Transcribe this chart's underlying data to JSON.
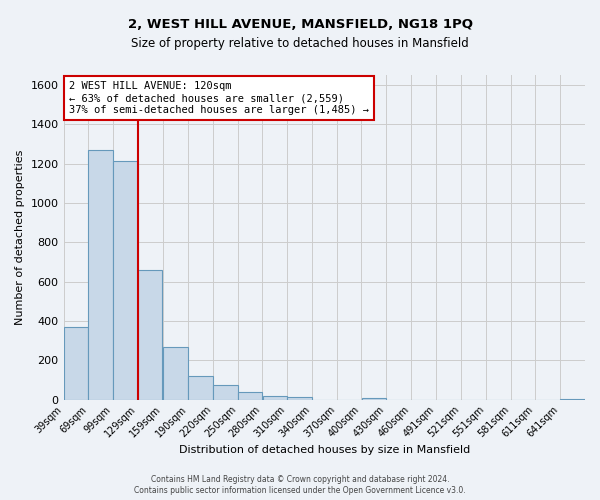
{
  "title_line1": "2, WEST HILL AVENUE, MANSFIELD, NG18 1PQ",
  "title_line2": "Size of property relative to detached houses in Mansfield",
  "xlabel": "Distribution of detached houses by size in Mansfield",
  "ylabel": "Number of detached properties",
  "bar_labels": [
    "39sqm",
    "69sqm",
    "99sqm",
    "129sqm",
    "159sqm",
    "190sqm",
    "220sqm",
    "250sqm",
    "280sqm",
    "310sqm",
    "340sqm",
    "370sqm",
    "400sqm",
    "430sqm",
    "460sqm",
    "491sqm",
    "521sqm",
    "551sqm",
    "581sqm",
    "611sqm",
    "641sqm"
  ],
  "bar_values": [
    370,
    1270,
    1215,
    660,
    270,
    120,
    75,
    40,
    20,
    15,
    0,
    0,
    10,
    0,
    0,
    0,
    0,
    0,
    0,
    0,
    5
  ],
  "bar_color": "#c8d8e8",
  "bar_edge_color": "#6699bb",
  "vline_bin_index": 3,
  "vline_color": "#cc0000",
  "annotation_text": "2 WEST HILL AVENUE: 120sqm\n← 63% of detached houses are smaller (2,559)\n37% of semi-detached houses are larger (1,485) →",
  "annotation_box_color": "#ffffff",
  "annotation_box_edge": "#cc0000",
  "ylim": [
    0,
    1650
  ],
  "yticks": [
    0,
    200,
    400,
    600,
    800,
    1000,
    1200,
    1400,
    1600
  ],
  "grid_color": "#cccccc",
  "bg_color": "#eef2f7",
  "footer_line1": "Contains HM Land Registry data © Crown copyright and database right 2024.",
  "footer_line2": "Contains public sector information licensed under the Open Government Licence v3.0.",
  "bin_edges": [
    39,
    69,
    99,
    129,
    159,
    190,
    220,
    250,
    280,
    310,
    340,
    370,
    400,
    430,
    460,
    491,
    521,
    551,
    581,
    611,
    641,
    671
  ]
}
